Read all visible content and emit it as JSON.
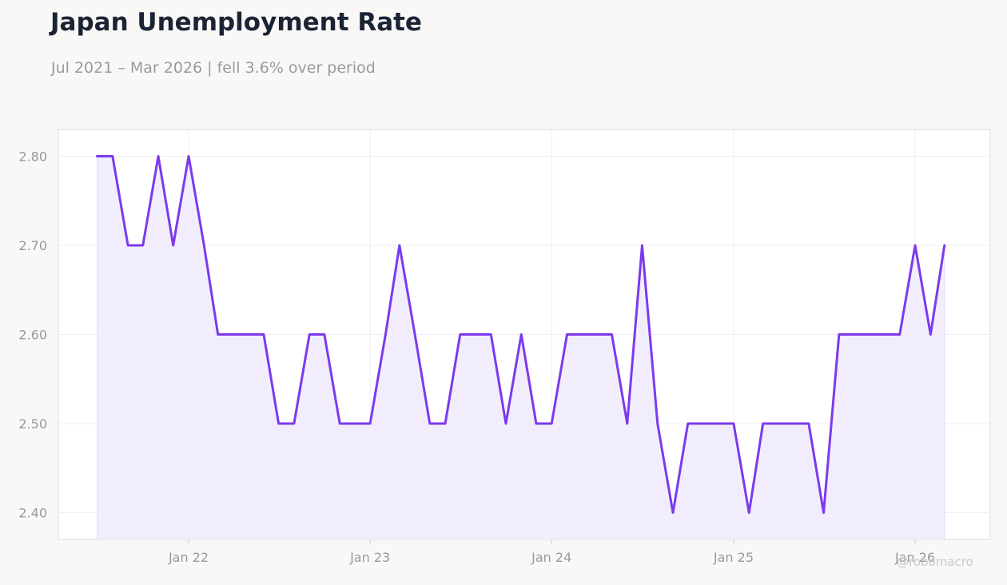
{
  "header": {
    "title": "Japan Unemployment Rate",
    "subtitle": "Jul 2021 – Mar 2026 | fell 3.6% over period"
  },
  "watermark": "@robomacro",
  "colors": {
    "line": "#7c3aed",
    "fill": "#f2edfc",
    "background": "#f9f8f6",
    "plot_background": "#ffffff",
    "grid": "#efedf5",
    "axis_text": "#999999"
  },
  "chart_data": {
    "type": "area",
    "title": "Japan Unemployment Rate",
    "subtitle": "Jul 2021 – Mar 2026 | fell 3.6% over period",
    "xlabel": "",
    "ylabel": "",
    "grid": true,
    "legend": "none",
    "ylim": [
      2.37,
      2.83
    ],
    "xlim": [
      "2021-04-14",
      "2026-06-01"
    ],
    "yticks": [
      2.8,
      2.7,
      2.6,
      2.5,
      2.4
    ],
    "ytick_labels": [
      "2.80",
      "2.70",
      "2.60",
      "2.50",
      "2.40"
    ],
    "xticks": [
      "2022-01",
      "2023-01",
      "2024-01",
      "2025-01",
      "2026-01"
    ],
    "xtick_labels": [
      "Jan 22",
      "Jan 23",
      "Jan 24",
      "Jan 25",
      "Jan 26"
    ],
    "x": [
      "2021-07",
      "2021-08",
      "2021-09",
      "2021-10",
      "2021-11",
      "2021-12",
      "2022-01",
      "2022-02",
      "2022-03",
      "2022-04",
      "2022-05",
      "2022-06",
      "2022-07",
      "2022-08",
      "2022-09",
      "2022-10",
      "2022-11",
      "2022-12",
      "2023-01",
      "2023-02",
      "2023-03",
      "2023-04",
      "2023-05",
      "2023-06",
      "2023-07",
      "2023-08",
      "2023-09",
      "2023-10",
      "2023-11",
      "2023-12",
      "2024-01",
      "2024-02",
      "2024-03",
      "2024-04",
      "2024-05",
      "2024-06",
      "2024-07",
      "2024-08",
      "2024-09",
      "2024-10",
      "2024-11",
      "2024-12",
      "2025-01",
      "2025-02",
      "2025-03",
      "2025-04",
      "2025-05",
      "2025-06",
      "2025-07",
      "2025-08",
      "2025-09",
      "2025-10",
      "2025-11",
      "2025-12",
      "2026-01",
      "2026-02",
      "2026-03"
    ],
    "values": [
      2.8,
      2.8,
      2.7,
      2.7,
      2.8,
      2.7,
      2.8,
      2.7,
      2.6,
      2.6,
      2.6,
      2.6,
      2.5,
      2.5,
      2.6,
      2.6,
      2.5,
      2.5,
      2.5,
      2.6,
      2.7,
      2.6,
      2.5,
      2.5,
      2.6,
      2.6,
      2.6,
      2.5,
      2.6,
      2.5,
      2.5,
      2.6,
      2.6,
      2.6,
      2.6,
      2.5,
      2.7,
      2.5,
      2.4,
      2.5,
      2.5,
      2.5,
      2.5,
      2.4,
      2.5,
      2.5,
      2.5,
      2.5,
      2.4,
      2.6,
      2.6,
      2.6,
      2.6,
      2.6,
      2.7,
      2.6,
      2.7
    ]
  }
}
